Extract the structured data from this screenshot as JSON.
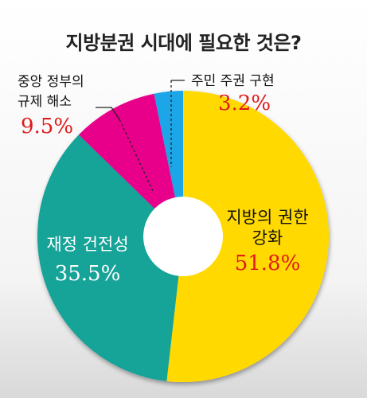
{
  "chart_data": {
    "type": "pie",
    "title": "지방분권 시대에 필요한 것은?",
    "slices": [
      {
        "label_lines": [
          "지방의 권한",
          "강화"
        ],
        "value": 51.8,
        "display": "51.8%",
        "color": "#ffd900"
      },
      {
        "label_lines": [
          "재정 건전성"
        ],
        "value": 35.5,
        "display": "35.5%",
        "color": "#12a398"
      },
      {
        "label_lines": [
          "중앙 정부의",
          "규제 해소"
        ],
        "value": 9.5,
        "display": "9.5%",
        "color": "#e8008b"
      },
      {
        "label_lines": [
          "주민 주권 구현"
        ],
        "value": 3.2,
        "display": "3.2%",
        "color": "#1aa6e8"
      }
    ]
  }
}
